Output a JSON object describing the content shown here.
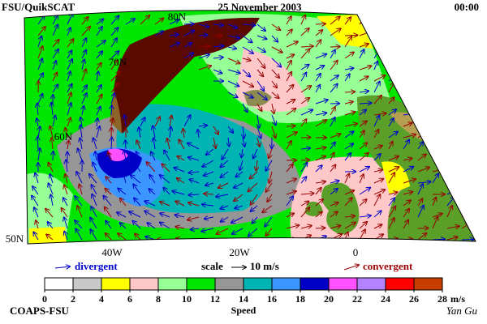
{
  "header": {
    "title": "FSU/QuikSCAT",
    "date": "25 November 2003",
    "time": "00:00"
  },
  "map": {
    "lat_labels": [
      "80N",
      "70N",
      "60N",
      "50N"
    ],
    "lon_labels": [
      "40W",
      "20W",
      "0"
    ]
  },
  "legend": {
    "divergent": "divergent",
    "scale": "scale",
    "scale_value": "10 m/s",
    "convergent": "convergent"
  },
  "colorbar": {
    "ticks": [
      0,
      2,
      4,
      6,
      8,
      10,
      12,
      14,
      16,
      18,
      20,
      22,
      24,
      26,
      28
    ],
    "colors": [
      "#ffffff",
      "#c8c8c8",
      "#ffff00",
      "#ffc8c8",
      "#96ff96",
      "#00e600",
      "#969696",
      "#00b4b4",
      "#3c96ff",
      "#0000c8",
      "#ff50ff",
      "#b482ff",
      "#ff0000",
      "#c83c00",
      "#000000"
    ],
    "unit": "m/s",
    "label": "Speed"
  },
  "footer": {
    "left": "COAPS-FSU",
    "right": "Yan Gu"
  }
}
